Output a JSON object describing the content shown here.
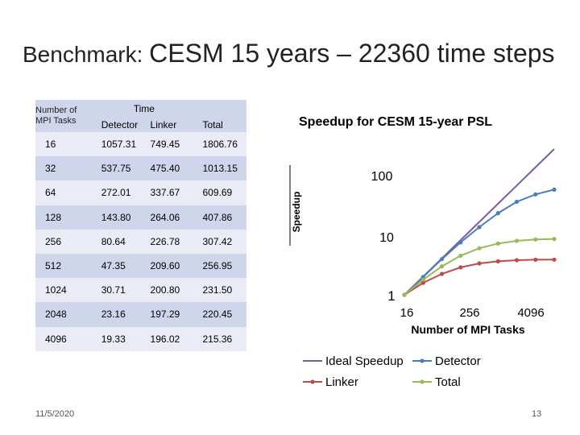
{
  "slide": {
    "title_part1": "Benchmark: ",
    "title_part2": "CESM 15 years – 22360 time steps",
    "date": "11/5/2020",
    "page_number": "13"
  },
  "table": {
    "header_mpi_line1": "Number of",
    "header_mpi_line2": "MPI Tasks",
    "header_time": "Time",
    "header_detector": "Detector",
    "header_linker": "Linker",
    "header_total": "Total",
    "rows": [
      {
        "tasks": "16",
        "detector": "1057.31",
        "linker": "749.45",
        "total": "1806.76"
      },
      {
        "tasks": "32",
        "detector": "537.75",
        "linker": "475.40",
        "total": "1013.15"
      },
      {
        "tasks": "64",
        "detector": "272.01",
        "linker": "337.67",
        "total": "609.69"
      },
      {
        "tasks": "128",
        "detector": "143.80",
        "linker": "264.06",
        "total": "407.86"
      },
      {
        "tasks": "256",
        "detector": "80.64",
        "linker": "226.78",
        "total": "307.42"
      },
      {
        "tasks": "512",
        "detector": "47.35",
        "linker": "209.60",
        "total": "256.95"
      },
      {
        "tasks": "1024",
        "detector": "30.71",
        "linker": "200.80",
        "total": "231.50"
      },
      {
        "tasks": "2048",
        "detector": "23.16",
        "linker": "197.29",
        "total": "220.45"
      },
      {
        "tasks": "4096",
        "detector": "19.33",
        "linker": "196.02",
        "total": "215.36"
      }
    ]
  },
  "chart_data": {
    "type": "line",
    "title": "Speedup for CESM 15-year PSL",
    "xlabel": "Number of MPI Tasks",
    "ylabel": "Speedup",
    "x_scale": "log",
    "y_scale": "log",
    "x": [
      16,
      32,
      64,
      128,
      256,
      512,
      1024,
      2048,
      4096
    ],
    "x_tick_labels": [
      "16",
      "256",
      "4096"
    ],
    "y_tick_labels": [
      "1",
      "10",
      "100"
    ],
    "ylim": [
      1,
      256
    ],
    "grid": false,
    "legend_position": "bottom",
    "series": [
      {
        "name": "Ideal Speedup",
        "color": "#7b5aa6",
        "markers": false,
        "values": [
          1,
          2,
          4,
          8,
          16,
          32,
          64,
          128,
          256
        ]
      },
      {
        "name": "Detector",
        "color": "#4a7ebb",
        "markers": true,
        "values": [
          1,
          1.97,
          3.89,
          7.35,
          13.11,
          22.33,
          34.43,
          45.65,
          54.7
        ]
      },
      {
        "name": "Linker",
        "color": "#be4b48",
        "markers": true,
        "values": [
          1,
          1.58,
          2.22,
          2.84,
          3.3,
          3.58,
          3.73,
          3.8,
          3.82
        ]
      },
      {
        "name": "Total",
        "color": "#98b954",
        "markers": true,
        "values": [
          1,
          1.78,
          2.96,
          4.43,
          5.88,
          7.03,
          7.8,
          8.2,
          8.39
        ]
      }
    ]
  }
}
